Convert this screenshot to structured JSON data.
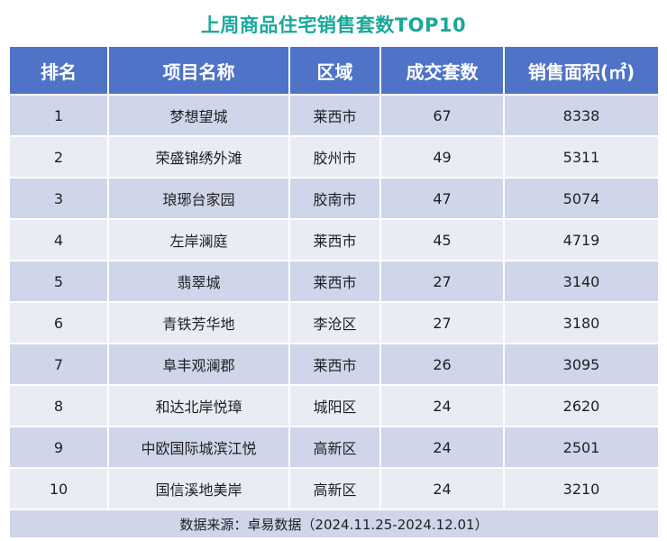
{
  "title": "上周商品住宅销售套数TOP10",
  "table": {
    "headers": [
      "排名",
      "项目名称",
      "区域",
      "成交套数",
      "销售面积(㎡)"
    ],
    "rows": [
      [
        "1",
        "梦想望城",
        "莱西市",
        "67",
        "8338"
      ],
      [
        "2",
        "荣盛锦绣外滩",
        "胶州市",
        "49",
        "5311"
      ],
      [
        "3",
        "琅琊台家园",
        "胶南市",
        "47",
        "5074"
      ],
      [
        "4",
        "左岸澜庭",
        "莱西市",
        "45",
        "4719"
      ],
      [
        "5",
        "翡翠城",
        "莱西市",
        "27",
        "3140"
      ],
      [
        "6",
        "青铁芳华地",
        "李沧区",
        "27",
        "3180"
      ],
      [
        "7",
        "阜丰观澜郡",
        "莱西市",
        "26",
        "3095"
      ],
      [
        "8",
        "和达北岸悦璋",
        "城阳区",
        "24",
        "2620"
      ],
      [
        "9",
        "中欧国际城滨江悦",
        "高新区",
        "24",
        "2501"
      ],
      [
        "10",
        "国信溪地美岸",
        "高新区",
        "24",
        "3210"
      ]
    ]
  },
  "source": "数据来源：卓易数据（2024.11.25-2024.12.01）",
  "colors": {
    "title": "#1aa89a",
    "header_bg": "#4f73c6",
    "row_dark": "#cfd6ea",
    "row_light": "#e9ecf5"
  }
}
